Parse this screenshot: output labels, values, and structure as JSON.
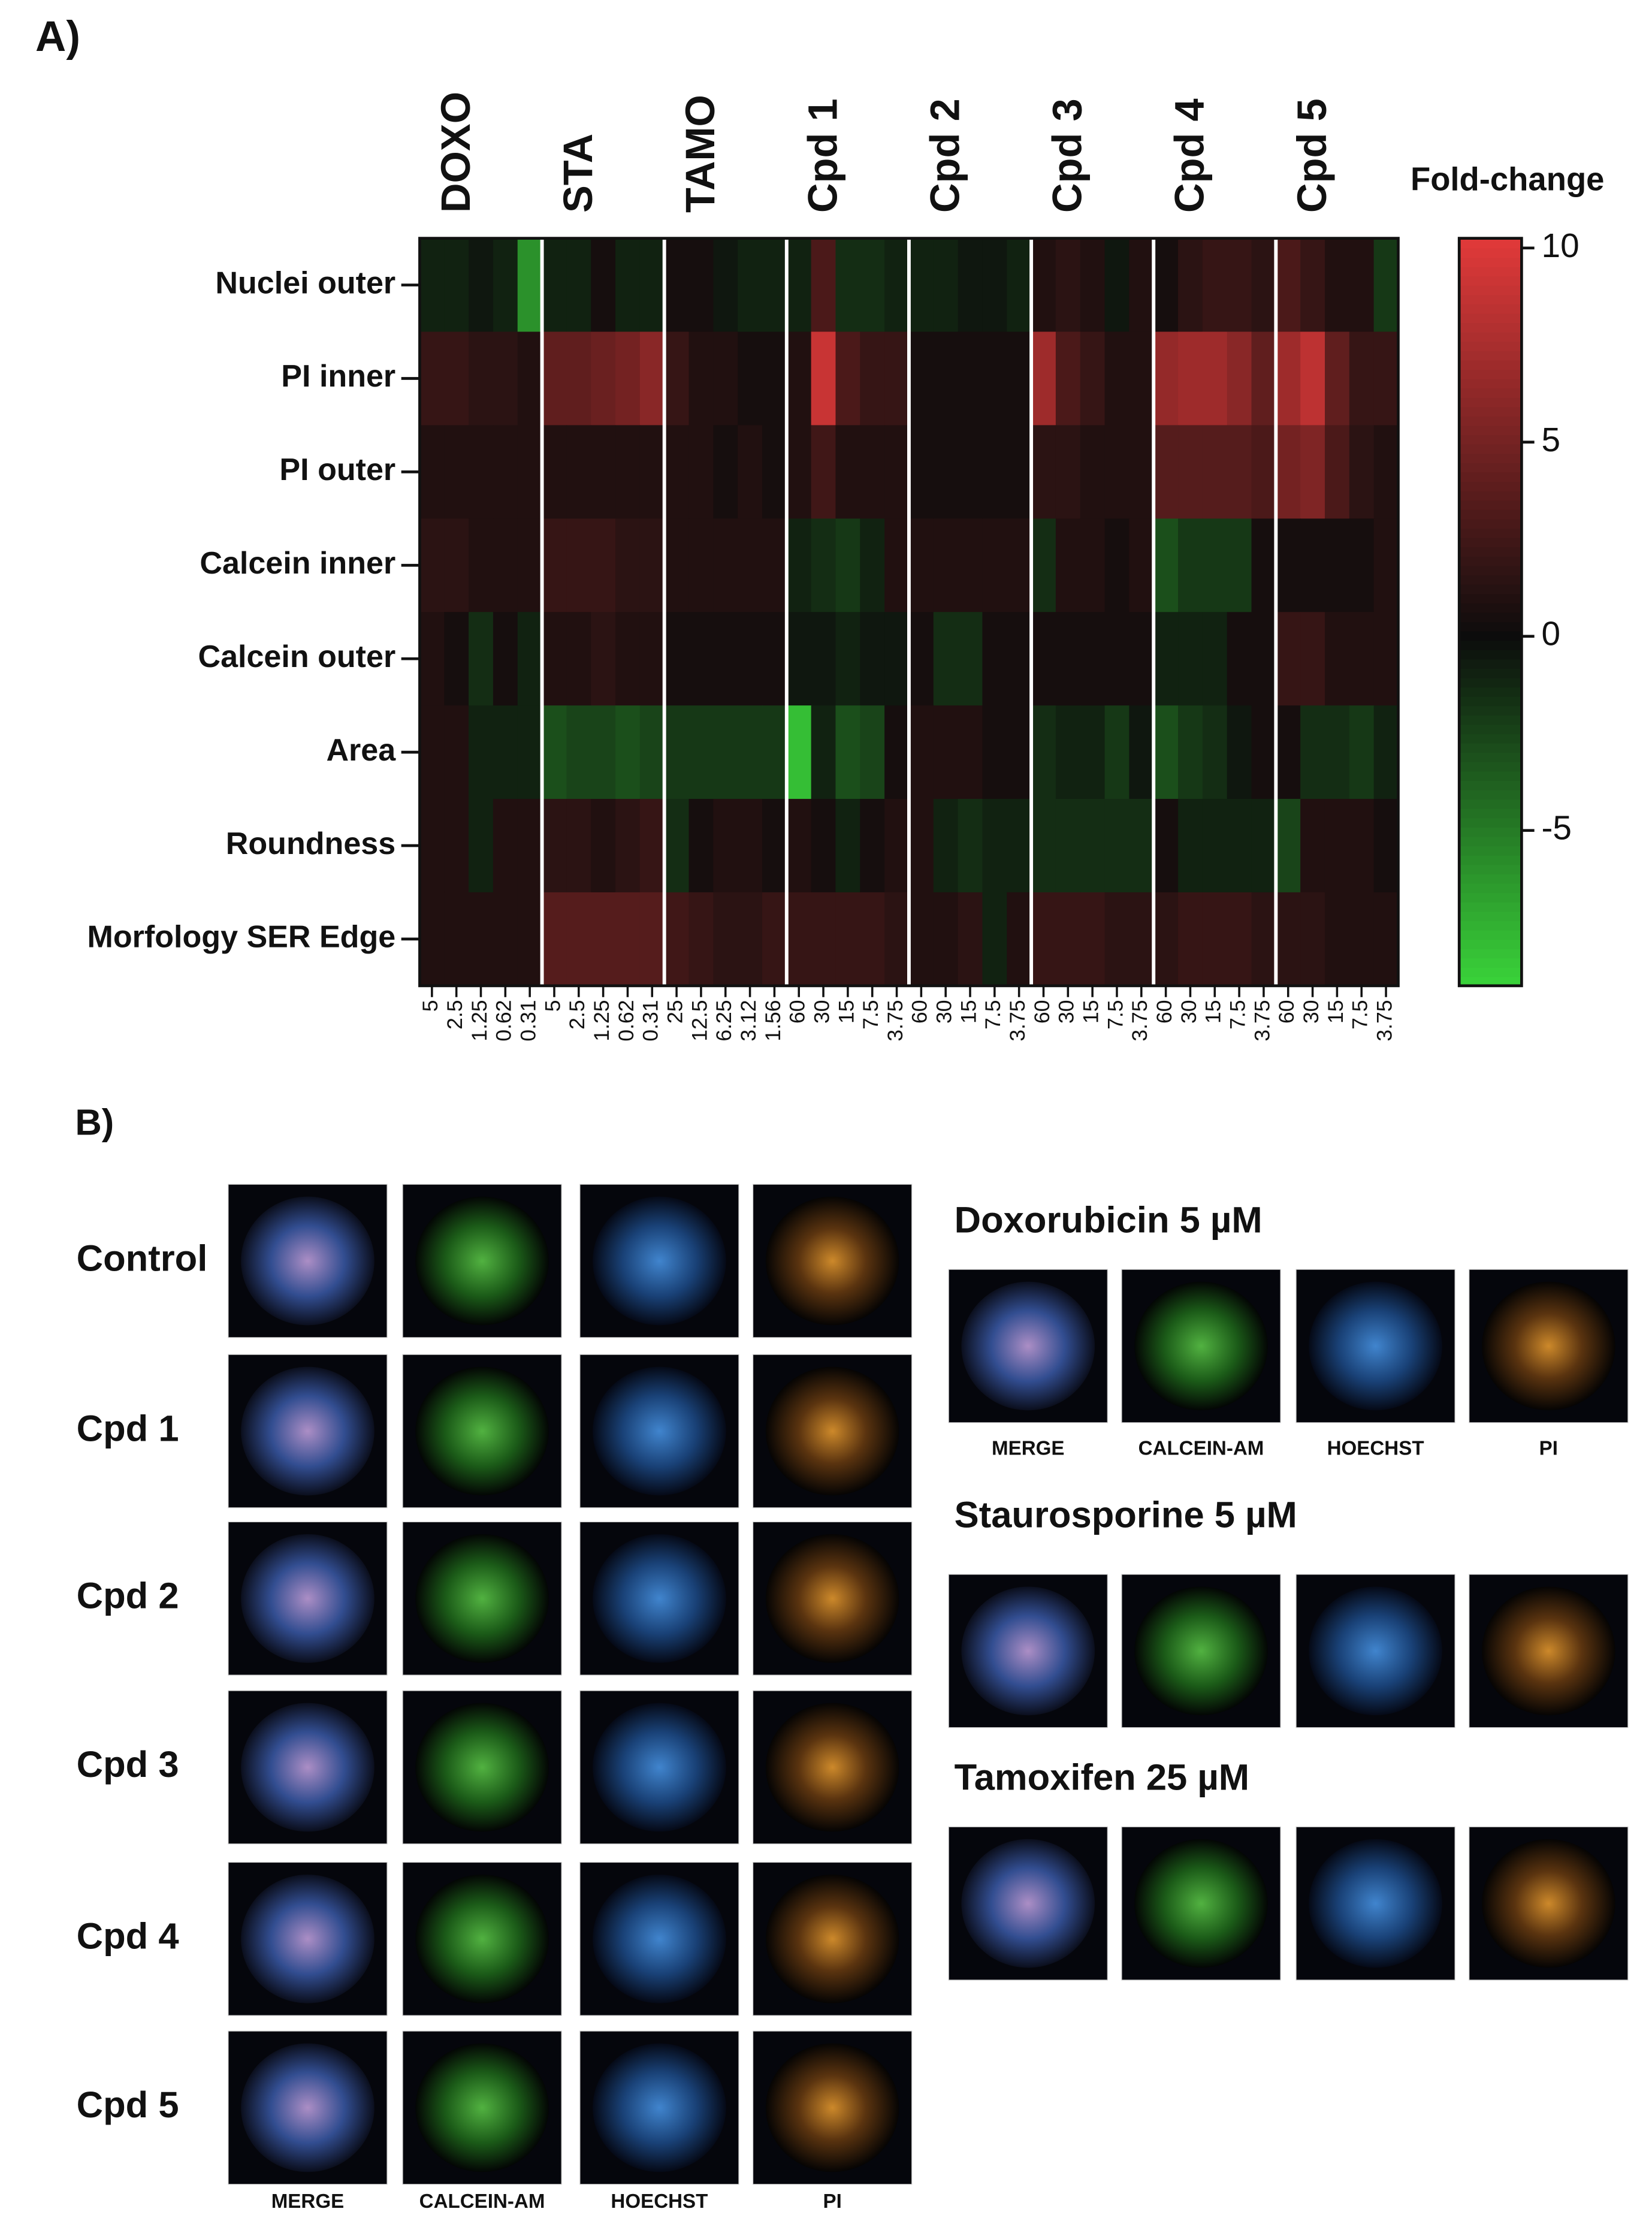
{
  "panel_a_label": "A)",
  "chart_data": {
    "type": "heatmap",
    "groups": [
      "DOXO",
      "STA",
      "TAMO",
      "Cpd 1",
      "Cpd 2",
      "Cpd 3",
      "Cpd 4",
      "Cpd 5"
    ],
    "categories": [
      "5",
      "2.5",
      "1.25",
      "0.62",
      "0.31",
      "5",
      "2.5",
      "1.25",
      "0.62",
      "0.31",
      "25",
      "12.5",
      "6.25",
      "3.12",
      "1.56",
      "60",
      "30",
      "15",
      "7.5",
      "3.75",
      "60",
      "30",
      "15",
      "7.5",
      "3.75",
      "60",
      "30",
      "15",
      "7.5",
      "3.75",
      "60",
      "30",
      "15",
      "7.5",
      "3.75",
      "60",
      "30",
      "15",
      "7.5",
      "3.75"
    ],
    "rows": [
      "Nuclei outer",
      "PI inner",
      "PI outer",
      "Calcein inner",
      "Calcein outer",
      "Area",
      "Roundness",
      "Morfology SER Edge"
    ],
    "values": [
      [
        -1,
        -1,
        -0.5,
        -1,
        -6,
        -1,
        -1,
        0.5,
        -1,
        -1,
        0.5,
        0.5,
        -0.5,
        -1,
        -1,
        -1,
        3,
        -1.5,
        -1.5,
        -1,
        -1,
        -1,
        -0.5,
        -0.5,
        -1,
        1,
        1.5,
        1,
        -0.5,
        1,
        0.5,
        1.5,
        2,
        2,
        1.5,
        3,
        2,
        1,
        1,
        -2
      ],
      [
        2,
        2,
        1.5,
        1.5,
        1,
        4,
        4,
        4.5,
        5,
        6,
        2,
        1,
        1,
        0.5,
        0.5,
        1,
        9,
        3,
        2,
        2,
        0.5,
        0.5,
        0.5,
        0.5,
        0.5,
        7,
        3,
        2,
        1,
        1,
        6.5,
        7,
        7,
        6,
        4,
        7,
        8.5,
        4,
        2,
        2
      ],
      [
        1,
        1,
        1,
        1,
        1,
        1,
        1,
        1,
        1,
        1,
        1,
        1,
        0.5,
        1,
        0.5,
        1,
        2.5,
        1,
        1,
        1,
        0.5,
        0.5,
        0.5,
        0.5,
        0.5,
        1.5,
        1.5,
        1,
        1,
        1,
        3.5,
        3.5,
        3.5,
        3.5,
        3,
        5,
        5.5,
        3,
        1.5,
        1
      ],
      [
        1.5,
        1.5,
        1,
        1,
        1,
        2,
        2,
        2,
        1.5,
        1.5,
        1,
        1,
        1,
        1,
        1,
        -1,
        -1.5,
        -2,
        -1,
        1,
        1,
        1,
        1,
        1,
        1,
        -1.5,
        1,
        1,
        0.5,
        1,
        -3,
        -2,
        -2,
        -2,
        0.5,
        0.5,
        0.5,
        0.5,
        0.5,
        1
      ],
      [
        1,
        0.5,
        -1.5,
        0.5,
        -1,
        1,
        1,
        1.5,
        1,
        1,
        0.5,
        0.5,
        0.5,
        0.5,
        0.5,
        -0.5,
        -0.5,
        -1,
        -0.5,
        -0.5,
        0.5,
        -1.5,
        -1.5,
        0.5,
        0.5,
        0.5,
        0.5,
        0.5,
        0.5,
        0.5,
        -1,
        -1,
        -1,
        0.5,
        0.5,
        2,
        2,
        1,
        1,
        1
      ],
      [
        1,
        1,
        -1,
        -1,
        -1,
        -3,
        -2.5,
        -2.5,
        -3,
        -2.5,
        -2,
        -2,
        -2,
        -2,
        -2,
        -8,
        -1,
        -3,
        -2.5,
        0.5,
        1,
        1,
        1,
        0.5,
        0.5,
        -1.5,
        -1,
        -1,
        -2,
        -0.5,
        -3,
        -2,
        -1.5,
        -0.5,
        0.5,
        0.5,
        -1.5,
        -1.5,
        -2,
        -1
      ],
      [
        1,
        1,
        -1,
        1,
        1,
        1.5,
        1.5,
        1,
        1.5,
        2,
        -1.5,
        0.5,
        1,
        1,
        0.5,
        1,
        0.5,
        -1,
        0.5,
        1,
        1,
        -1,
        -1.5,
        -1,
        -1,
        -1.5,
        -1.5,
        -1.5,
        -1.5,
        -1.5,
        0.5,
        -1,
        -1,
        -1,
        -1,
        -2.5,
        1,
        1,
        1,
        0.5
      ],
      [
        1,
        1,
        1,
        1,
        1,
        3.5,
        3.5,
        3.5,
        3.5,
        3.5,
        2.5,
        2,
        1.5,
        1.5,
        2,
        2,
        2,
        2,
        2,
        1.5,
        1,
        1,
        1.5,
        -1,
        1,
        2,
        2,
        2,
        1.5,
        1.5,
        1.5,
        2,
        2,
        2,
        1.5,
        1.5,
        1.5,
        1,
        1,
        1
      ]
    ],
    "colorbar": {
      "title": "Fold-change",
      "lim": [
        -9,
        10.25
      ],
      "ticks": [
        10,
        5,
        0,
        -5
      ]
    },
    "colors": {
      "low": "#3ad43a",
      "mid": "#0c0c0c",
      "high": "#e23a3a"
    }
  },
  "panel_b": {
    "label": "B)",
    "left": {
      "rows": [
        {
          "label": "Control"
        },
        {
          "label": "Cpd 1"
        },
        {
          "label": "Cpd 2"
        },
        {
          "label": "Cpd 3"
        },
        {
          "label": "Cpd 4"
        },
        {
          "label": "Cpd 5"
        }
      ],
      "captions": [
        "MERGE",
        "CALCEIN-AM",
        "HOECHST",
        "PI"
      ]
    },
    "right": [
      {
        "title": "Doxorubicin 5 µM",
        "captions": [
          "MERGE",
          "CALCEIN-AM",
          "HOECHST",
          "PI"
        ]
      },
      {
        "title": "Staurosporine 5 µM"
      },
      {
        "title": "Tamoxifen 25 µM"
      }
    ]
  }
}
